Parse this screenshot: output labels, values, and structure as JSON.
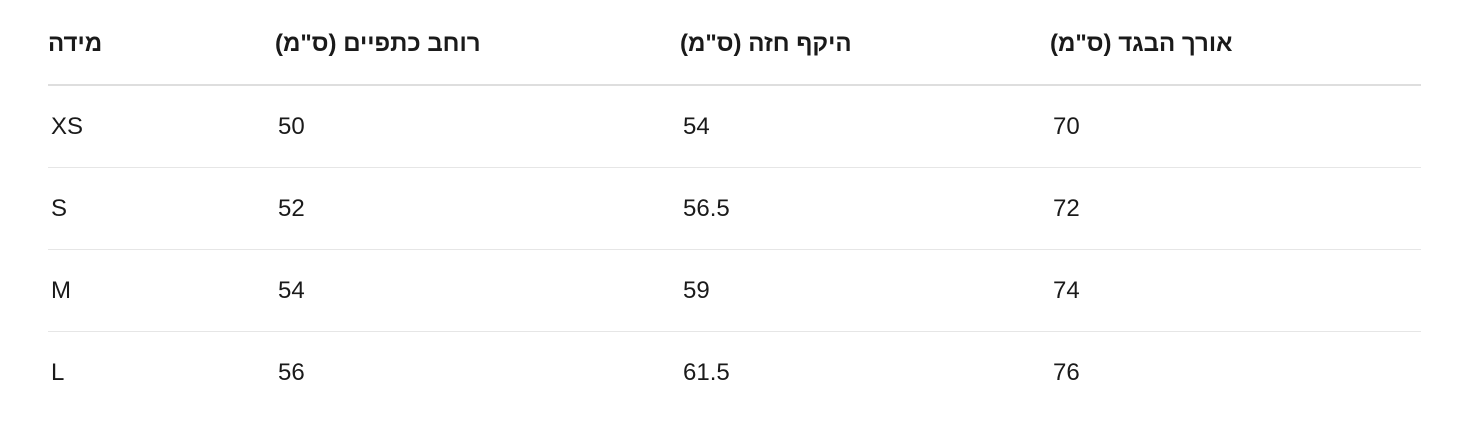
{
  "table": {
    "headers": [
      "מידה",
      "רוחב כתפיים (ס\"מ)",
      "היקף חזה (ס\"מ)",
      "אורך הבגד (ס\"מ)"
    ],
    "rows": [
      [
        "XS",
        "50",
        "54",
        "70"
      ],
      [
        "S",
        "52",
        "56.5",
        "72"
      ],
      [
        "M",
        "54",
        "59",
        "74"
      ],
      [
        "L",
        "56",
        "61.5",
        "76"
      ]
    ]
  }
}
